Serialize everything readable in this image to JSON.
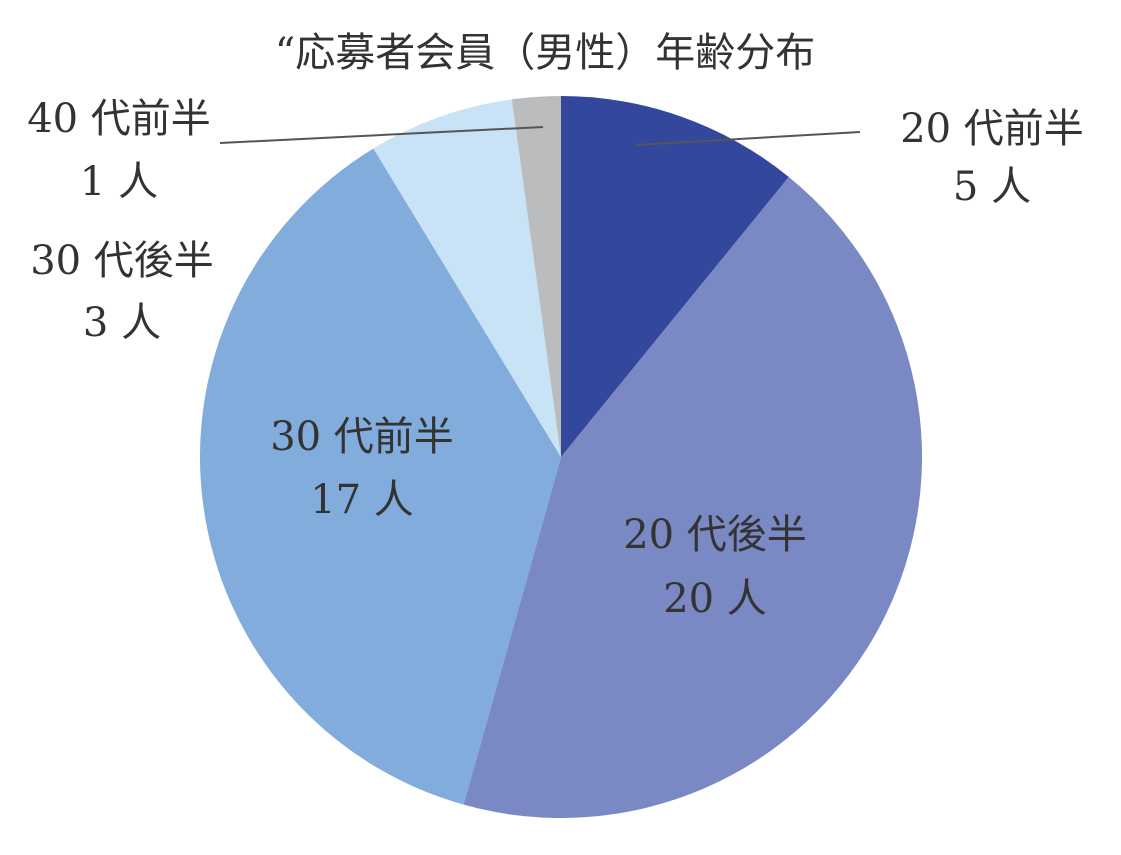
{
  "chart_data": {
    "type": "pie",
    "title": "“応募者会員（男性）年齢分布",
    "start_angle_deg": 0,
    "direction": "clockwise",
    "slices": [
      {
        "label": "20 代前半",
        "count_label": "5 人",
        "value": 5,
        "color": "#33479C"
      },
      {
        "label": "20 代後半",
        "count_label": "20 人",
        "value": 20,
        "color": "#7A89C3"
      },
      {
        "label": "30 代前半",
        "count_label": "17 人",
        "value": 17,
        "color": "#81ACDC"
      },
      {
        "label": "30 代後半",
        "count_label": "3 人",
        "value": 3,
        "color": "#C8E2F6"
      },
      {
        "label": "40 代前半",
        "count_label": "1 人",
        "value": 1,
        "color": "#BBBCBD"
      }
    ]
  }
}
